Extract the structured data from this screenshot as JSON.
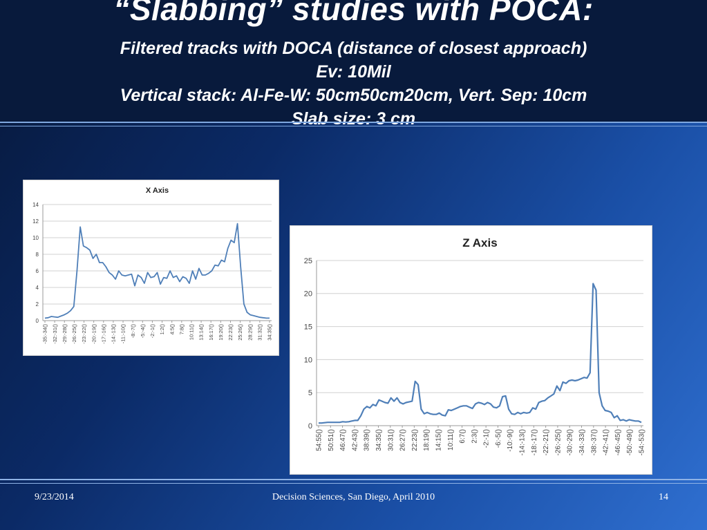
{
  "slide": {
    "title": "“Slabbing” studies with POCA:",
    "sub1": "Filtered tracks with DOCA (distance of closest approach)",
    "sub2": "Ev: 10Mil",
    "sub3": "Vertical stack: Al-Fe-W: 50cm50cm20cm, Vert. Sep: 10cm",
    "sub4": "Slab size: 3 cm"
  },
  "footer": {
    "date": "9/23/2014",
    "center": "Decision Sciences, San Diego, April 2010",
    "page": "14"
  },
  "colors": {
    "line": "#4f7fb8",
    "grid": "#d0d0d0",
    "axis_text": "#444444"
  },
  "chart_data": [
    {
      "type": "line",
      "title": "X Axis",
      "ylim": [
        0,
        14
      ],
      "yticks": [
        0,
        2,
        4,
        6,
        8,
        10,
        12,
        14
      ],
      "tick_labels": [
        "-35:-34()",
        "-32:-31()",
        "-29:-28()",
        "-26:-25()",
        "-23:-22()",
        "-20:-19()",
        "-17:-16()",
        "-14:-13()",
        "-11:-10()",
        "-8:-7()",
        "-5:-4()",
        "-2:-1()",
        "1:2()",
        "4:5()",
        "7:8()",
        "10:11()",
        "13:14()",
        "16:17()",
        "19:20()",
        "22:23()",
        "25:26()",
        "28:29()",
        "31:32()",
        "34:35()"
      ],
      "values": [
        0.3,
        0.35,
        0.5,
        0.45,
        0.4,
        0.55,
        0.7,
        0.9,
        1.2,
        1.7,
        6,
        11.3,
        9,
        8.8,
        8.5,
        7.5,
        8,
        7,
        7,
        6.5,
        5.8,
        5.5,
        5,
        6,
        5.5,
        5.4,
        5.5,
        5.6,
        4.2,
        5.5,
        5.2,
        4.5,
        5.8,
        5.2,
        5.3,
        5.8,
        4.4,
        5.2,
        5.1,
        6,
        5.2,
        5.4,
        4.7,
        5.3,
        5.1,
        4.5,
        6,
        5,
        6.3,
        5.5,
        5.5,
        5.7,
        6,
        6.7,
        6.6,
        7.3,
        7.1,
        8.7,
        9.7,
        9.4,
        11.7,
        6.5,
        2,
        1,
        0.7,
        0.6,
        0.5,
        0.4,
        0.35,
        0.3,
        0.3
      ]
    },
    {
      "type": "line",
      "title": "Z Axis",
      "ylim": [
        0,
        25
      ],
      "yticks": [
        0,
        5,
        10,
        15,
        20,
        25
      ],
      "tick_labels": [
        "54:55()",
        "50:51()",
        "46:47()",
        "42:43()",
        "38:39()",
        "34:35()",
        "30:31()",
        "26:27()",
        "22:23()",
        "18:19()",
        "14:15()",
        "10:11()",
        "6:7()",
        "2:3()",
        "-2:-1()",
        "-6:-5()",
        "-10:-9()",
        "-14:-13()",
        "-18:-17()",
        "-22:-21()",
        "-26:-25()",
        "-30:-29()",
        "-34:-33()",
        "-38:-37()",
        "-42:-41()",
        "-46:-45()",
        "-50:-49()",
        "-54:-53()"
      ],
      "values": [
        0.4,
        0.4,
        0.45,
        0.5,
        0.5,
        0.5,
        0.5,
        0.5,
        0.6,
        0.55,
        0.6,
        0.7,
        0.8,
        0.8,
        1.5,
        2.5,
        2.9,
        2.7,
        3.2,
        3.0,
        3.9,
        3.7,
        3.5,
        3.4,
        4.2,
        3.7,
        4.2,
        3.5,
        3.3,
        3.5,
        3.6,
        3.7,
        6.7,
        6.2,
        2.5,
        1.8,
        2.0,
        1.8,
        1.7,
        1.7,
        1.9,
        1.6,
        1.5,
        2.4,
        2.3,
        2.5,
        2.7,
        2.9,
        3.0,
        3.0,
        2.8,
        2.6,
        3.3,
        3.5,
        3.4,
        3.2,
        3.5,
        3.3,
        2.8,
        2.7,
        3.0,
        4.4,
        4.5,
        2.5,
        1.8,
        1.7,
        2.0,
        1.8,
        2.0,
        1.9,
        2.0,
        2.7,
        2.5,
        3.5,
        3.7,
        3.8,
        4.2,
        4.5,
        4.8,
        6.0,
        5.3,
        6.6,
        6.4,
        6.8,
        6.9,
        6.8,
        6.9,
        7.1,
        7.3,
        7.2,
        8.0,
        21.5,
        20.5,
        5.0,
        3.0,
        2.3,
        2.2,
        2.0,
        1.2,
        1.5,
        0.8,
        0.9,
        0.7,
        0.9,
        0.8,
        0.7,
        0.7,
        0.5
      ]
    }
  ]
}
